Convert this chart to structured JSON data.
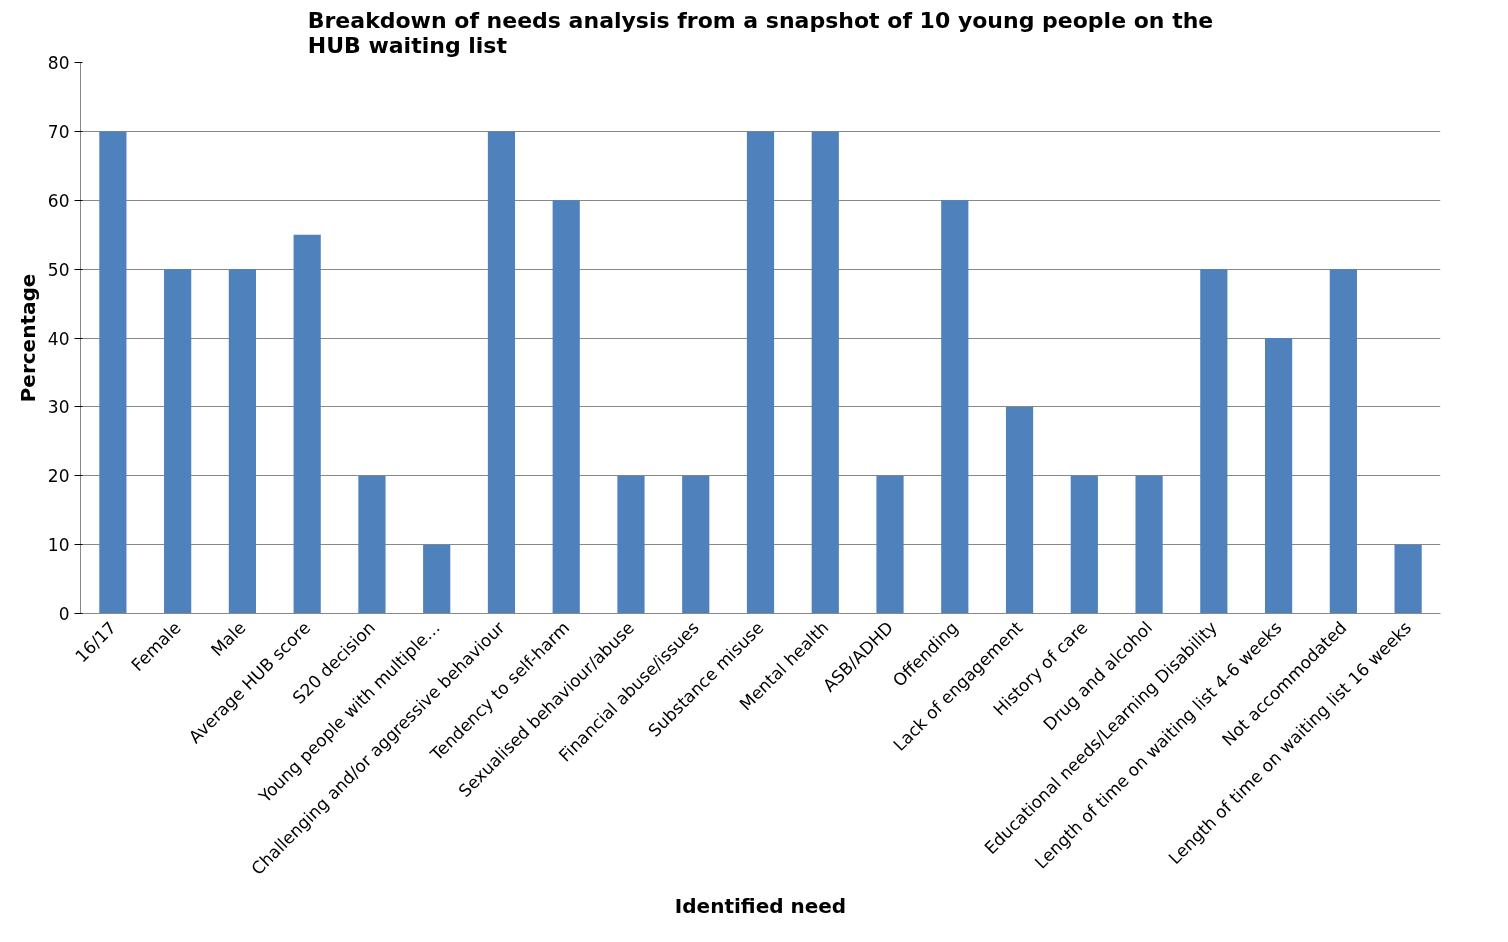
{
  "chart_data": {
    "type": "bar",
    "title": "Breakdown of needs analysis from a snapshot of 10 young people on the HUB waiting list",
    "xlabel": "Identified need",
    "ylabel": "Percentage",
    "categories": [
      "16/17",
      "Female",
      "Male",
      "Average HUB score",
      "S20 decision",
      "Young people with multiple…",
      "Challenging and/or aggressive behaviour",
      "Tendency to self-harm",
      "Sexualised behaviour/abuse",
      "Financial abuse/issues",
      "Substance misuse",
      "Mental health",
      "ASB/ADHD",
      "Offending",
      "Lack of engagement",
      "History of care",
      "Drug and alcohol",
      "Educational needs/Learning Disability",
      "Length of time on waiting list 4-6 weeks",
      "Not accommodated",
      "Length of time on waiting list 16 weeks"
    ],
    "values": [
      70,
      50,
      50,
      55,
      20,
      10,
      70,
      60,
      20,
      20,
      70,
      70,
      20,
      60,
      30,
      20,
      20,
      50,
      40,
      50,
      10
    ],
    "color": "#4f81bd",
    "ylim": [
      0,
      80
    ],
    "yticks": [
      0,
      10,
      20,
      30,
      40,
      50,
      60,
      70,
      80
    ],
    "grid": "y"
  }
}
